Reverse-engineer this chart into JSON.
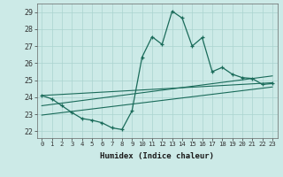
{
  "x": [
    0,
    1,
    2,
    3,
    4,
    5,
    6,
    7,
    8,
    9,
    10,
    11,
    12,
    13,
    14,
    15,
    16,
    17,
    18,
    19,
    20,
    21,
    22,
    23
  ],
  "y_main": [
    24.1,
    23.9,
    23.5,
    23.1,
    22.75,
    22.65,
    22.5,
    22.2,
    22.1,
    23.2,
    26.35,
    27.55,
    27.1,
    29.05,
    28.65,
    27.0,
    27.5,
    25.5,
    25.75,
    25.35,
    25.15,
    25.1,
    24.75,
    24.8
  ],
  "line_color": "#1a6b5a",
  "bg_color": "#cceae7",
  "grid_color": "#aad4d0",
  "xlabel": "Humidex (Indice chaleur)",
  "yticks": [
    22,
    23,
    24,
    25,
    26,
    27,
    28,
    29
  ],
  "xticks": [
    0,
    1,
    2,
    3,
    4,
    5,
    6,
    7,
    8,
    9,
    10,
    11,
    12,
    13,
    14,
    15,
    16,
    17,
    18,
    19,
    20,
    21,
    22,
    23
  ],
  "ylim": [
    21.6,
    29.5
  ],
  "xlim": [
    -0.5,
    23.5
  ],
  "reg_lines": [
    [
      [
        0,
        24.1
      ],
      [
        23,
        24.85
      ]
    ],
    [
      [
        0,
        23.5
      ],
      [
        23,
        25.25
      ]
    ],
    [
      [
        0,
        22.95
      ],
      [
        23,
        24.6
      ]
    ]
  ]
}
